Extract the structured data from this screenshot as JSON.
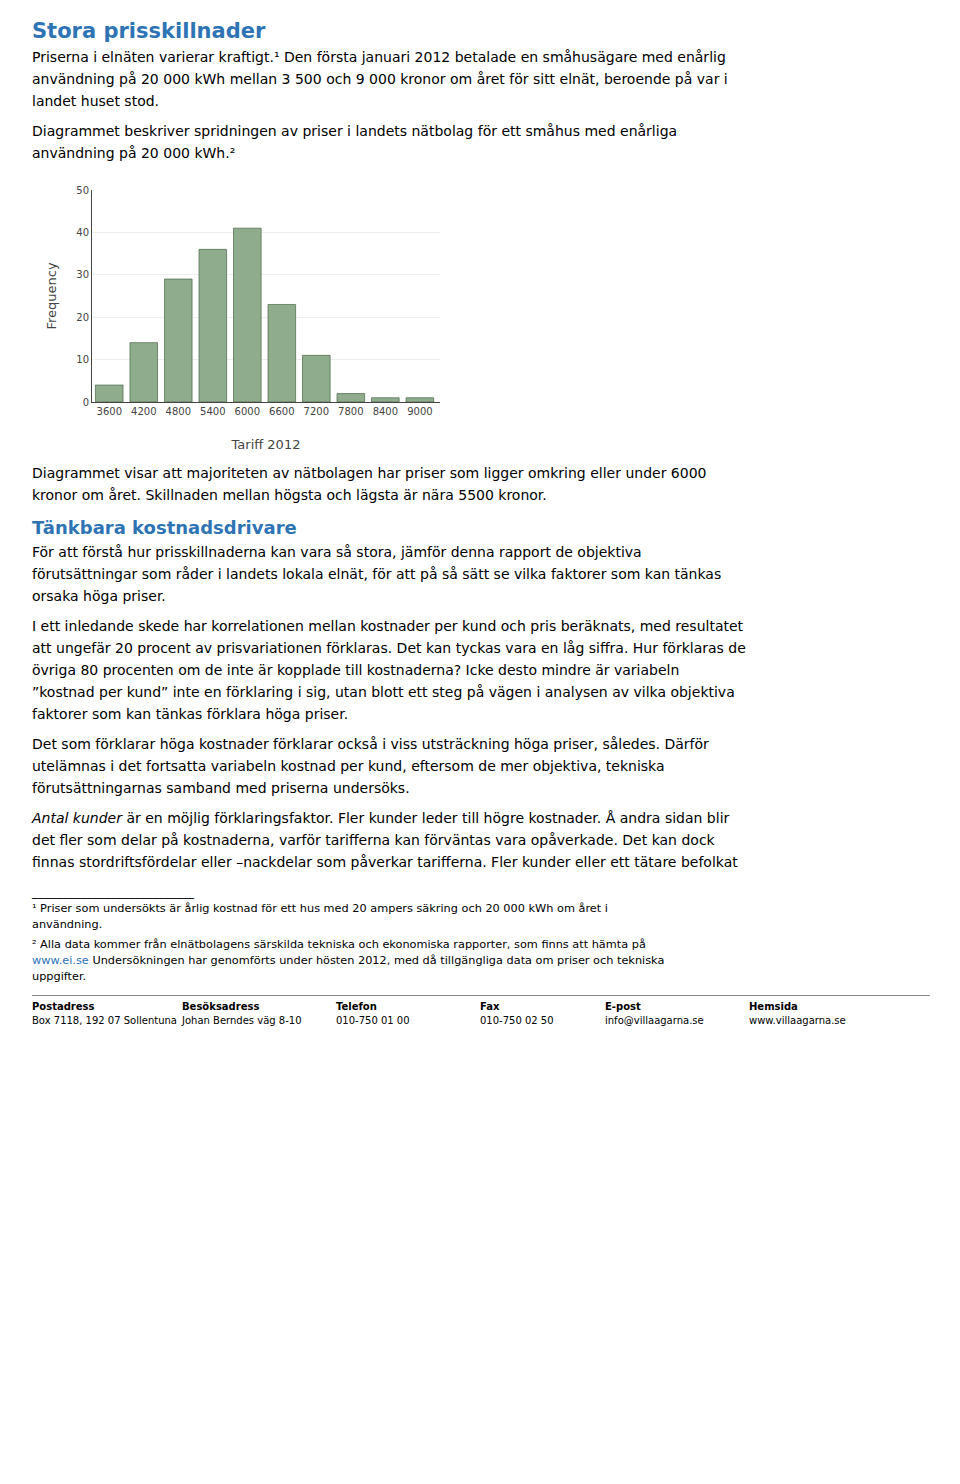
{
  "chart_data": {
    "type": "bar",
    "xlabel": "Tariff 2012",
    "ylabel": "Frequency",
    "x": [
      3600,
      4200,
      4800,
      5400,
      6000,
      6600,
      7200,
      7800,
      8400,
      9000
    ],
    "values": [
      4,
      14,
      29,
      36,
      41,
      23,
      11,
      2,
      1,
      1
    ],
    "color": "#8fac8c",
    "xlim": [
      3300,
      9350
    ],
    "xticks": [
      3600,
      4200,
      4800,
      5400,
      6000,
      6600,
      7200,
      7800,
      8400,
      9000
    ],
    "ylim": [
      0,
      50
    ],
    "yticks": [
      0,
      10,
      20,
      30,
      40,
      50
    ],
    "grid": true
  },
  "page": {
    "title": "Stora prisskillnader",
    "title_color": "#2e74b5",
    "heading_color": "#2e74b5",
    "link_color": "#2e74b5",
    "header": [
      {
        "lines": [
          "Priserna i elnäten varierar kraftigt.¹ Den första januari 2012 betalade en småhusägare med enårlig",
          "användning på 20 000 kWh mellan 3 500 och 9 000 kronor om året för sitt elnät, beroende på var i",
          "landet huset stod."
        ]
      },
      {
        "lines": [
          "Diagrammet beskriver spridningen av priser i landets nätbolag för ett småhus med enårliga",
          "användning på 20 000 kWh.²"
        ]
      }
    ],
    "body": [
      {
        "lines": [
          "Diagrammet visar att majoriteten av nätbolagen har priser som ligger omkring eller under 6000",
          "kronor om året. Skillnaden mellan högsta och lägsta är nära 5500 kronor."
        ]
      },
      {
        "heading": "Tänkbara kostnadsdrivare"
      },
      {
        "lines": [
          "För att förstå hur prisskillnaderna kan vara så stora, jämför denna rapport de objektiva",
          "förutsättningar som råder i landets lokala elnät, för att på så sätt se vilka faktorer som kan tänkas",
          "orsaka höga priser."
        ]
      },
      {
        "lines": [
          "I ett inledande skede har korrelationen mellan kostnader per kund och pris beräknats, med resultatet",
          "att ungefär 20 procent av prisvariationen förklaras. Det kan tyckas vara en låg siffra. Hur förklaras de",
          "övriga 80 procenten om de inte är kopplade till kostnaderna? Icke desto mindre är variabeln",
          "”kostnad per kund” inte en förklaring i sig, utan blott ett steg på vägen i analysen av vilka objektiva",
          "faktorer som kan tänkas förklara höga priser."
        ]
      },
      {
        "lines": [
          "Det som förklarar höga kostnader förklarar också i viss utsträckning höga priser, således. Därför",
          "utelämnas i det fortsatta variabeln kostnad per kund, eftersom de mer objektiva, tekniska",
          "förutsättningarnas samband med priserna undersöks."
        ]
      },
      {
        "lines": [
          [
            {
              "text": "Antal kunder",
              "italic": true
            },
            {
              "text": " är en möjlig förklaringsfaktor. Fler kunder leder till högre kostnader. Å andra sidan blir"
            }
          ],
          "det fler som delar på kostnaderna, varför tarifferna kan förväntas vara opåverkade. Det kan dock",
          "finnas stordriftsfördelar eller –nackdelar som påverkar tarifferna. Fler kunder eller ett tätare befolkat"
        ]
      }
    ],
    "footnote_line": "___________________________",
    "footnotes": [
      {
        "lines": [
          "¹ Priser som undersökts är årlig kostnad för ett hus med 20 ampers säkring och 20 000 kWh om året i",
          "användning."
        ]
      },
      {
        "lines": [
          "² Alla data kommer från elnätbolagens särskilda tekniska och ekonomiska rapporter, som finns att hämta på",
          [
            {
              "text": "www.ei.se",
              "link": true
            },
            {
              "text": " Undersökningen har genomförts under hösten 2012, med då tillgängliga data om priser och tekniska"
            }
          ],
          "uppgifter."
        ]
      }
    ],
    "footer": [
      {
        "title": "Postadress",
        "text": "Box 7118, 192 07 Sollentuna"
      },
      {
        "title": "Besöksadress",
        "text": "Johan Berndes väg 8-10"
      },
      {
        "title": "Telefon",
        "text": "010-750 01 00"
      },
      {
        "title": "Fax",
        "text": "010-750 02 50"
      },
      {
        "title": "E-post",
        "text": "info@villaagarna.se"
      },
      {
        "title": "Hemsida",
        "text": "www.villaagarna.se"
      }
    ]
  }
}
